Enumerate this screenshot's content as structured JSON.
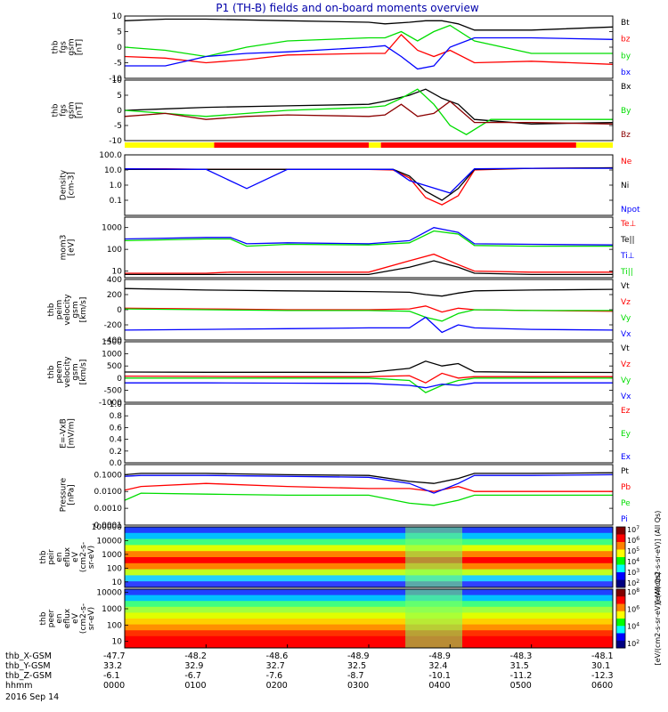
{
  "title": "P1 (TH-B) fields and on-board moments overview",
  "colors": {
    "black": "#000000",
    "red": "#ff0000",
    "green": "#00dd00",
    "blue": "#0000ff",
    "darkred": "#8b0000",
    "yellow": "#ffff00"
  },
  "chart_data": [
    {
      "type": "line",
      "ylabel": [
        "thb",
        "fgs",
        "gsm",
        "[nT]"
      ],
      "yticks": [
        "10",
        "5",
        "0",
        "-5",
        "-10"
      ],
      "ylim": [
        -10,
        10
      ],
      "series": [
        {
          "name": "Bt",
          "color": "black",
          "x": [
            0,
            0.5,
            1,
            2,
            3,
            3.2,
            3.5,
            3.7,
            3.9,
            4.1,
            4.3,
            5,
            6
          ],
          "y": [
            8.5,
            9,
            9,
            8.5,
            8,
            7.5,
            8,
            8.5,
            8.5,
            7.5,
            5.5,
            5.5,
            6.5
          ]
        },
        {
          "name": "bz",
          "color": "red",
          "x": [
            0,
            0.5,
            1,
            1.5,
            2,
            3,
            3.2,
            3.4,
            3.6,
            3.8,
            4,
            4.3,
            5,
            6
          ],
          "y": [
            -3,
            -3.5,
            -5,
            -4,
            -2.5,
            -2,
            -2,
            4,
            -1,
            -3,
            -1,
            -5,
            -4.5,
            -5.5
          ]
        },
        {
          "name": "by",
          "color": "green",
          "x": [
            0,
            0.5,
            1,
            1.5,
            2,
            3,
            3.2,
            3.4,
            3.6,
            3.8,
            4,
            4.3,
            5,
            6
          ],
          "y": [
            0,
            -1,
            -3,
            0,
            2,
            3,
            3,
            5,
            2,
            5,
            7,
            2,
            -2,
            -2
          ]
        },
        {
          "name": "bx",
          "color": "blue",
          "x": [
            0,
            0.5,
            1,
            1.5,
            2,
            3,
            3.2,
            3.4,
            3.6,
            3.8,
            4,
            4.3,
            5,
            6
          ],
          "y": [
            -6,
            -6,
            -3,
            -2,
            -1.5,
            0,
            0.5,
            -3,
            -7,
            -6,
            0,
            3,
            3,
            2.5
          ]
        }
      ]
    },
    {
      "type": "line",
      "ylabel": [
        "thb",
        "fgs",
        "gsm",
        "[nT]"
      ],
      "yticks": [
        "10",
        "5",
        "0",
        "-5",
        "-10"
      ],
      "ylim": [
        -10,
        10
      ],
      "series": [
        {
          "name": "Bx",
          "color": "black",
          "x": [
            0,
            0.5,
            1,
            2,
            3,
            3.2,
            3.5,
            3.7,
            3.9,
            4.1,
            4.3,
            5,
            6
          ],
          "y": [
            0,
            0.5,
            1,
            1.5,
            2,
            3,
            5,
            7,
            4,
            2,
            -3,
            -4.5,
            -4
          ]
        },
        {
          "name": "By",
          "color": "green",
          "x": [
            0,
            0.5,
            1,
            2,
            3,
            3.2,
            3.4,
            3.6,
            3.8,
            4,
            4.2,
            4.5,
            5,
            6
          ],
          "y": [
            0,
            -1,
            -2,
            0,
            1,
            1.5,
            4,
            7,
            2,
            -5,
            -8,
            -3,
            -3,
            -3
          ]
        },
        {
          "name": "Bz",
          "color": "darkred",
          "x": [
            0,
            0.5,
            1,
            1.5,
            2,
            3,
            3.2,
            3.4,
            3.6,
            3.8,
            4,
            4.3,
            5,
            6
          ],
          "y": [
            -2,
            -1,
            -3,
            -2,
            -1.5,
            -2,
            -1.5,
            2,
            -2,
            -1,
            3,
            -4,
            -4,
            -4.5
          ]
        }
      ]
    },
    {
      "type": "line",
      "scale": "log",
      "ylabel": [
        "Density",
        "[cm-3]"
      ],
      "yticks": [
        "100.0",
        "10.0",
        "1.0",
        "0.1"
      ],
      "ylim": [
        0.01,
        100
      ],
      "series": [
        {
          "name": "Ne",
          "color": "red",
          "x": [
            0,
            0.5,
            1,
            2,
            3,
            3.3,
            3.5,
            3.7,
            3.9,
            4.1,
            4.3,
            5,
            6
          ],
          "y": [
            12,
            12,
            11,
            11,
            11,
            10,
            3,
            0.15,
            0.05,
            0.2,
            10,
            13,
            14
          ]
        },
        {
          "name": "Ni",
          "color": "black",
          "x": [
            0,
            1,
            2,
            3,
            3.3,
            3.5,
            3.7,
            3.9,
            4.1,
            4.3,
            5,
            6
          ],
          "y": [
            11,
            11,
            11,
            11,
            11,
            4,
            0.4,
            0.1,
            0.6,
            11,
            13,
            14
          ]
        },
        {
          "name": "Npot",
          "color": "blue",
          "x": [
            0,
            1,
            1.5,
            2,
            3,
            3.3,
            3.5,
            4,
            4.3,
            5,
            6
          ],
          "y": [
            12,
            11,
            0.6,
            11,
            11,
            11,
            2,
            0.3,
            12,
            13,
            13
          ]
        }
      ]
    },
    {
      "type": "line",
      "scale": "log",
      "ylabel": [
        "mom3",
        "[eV]"
      ],
      "yticks": [
        "1000",
        "100",
        "10"
      ],
      "ylim": [
        5,
        3000
      ],
      "series": [
        {
          "name": "Te⊥",
          "color": "red",
          "x": [
            0,
            1,
            1.3,
            1.5,
            2,
            3,
            3.5,
            3.8,
            4.1,
            4.3,
            5,
            6
          ],
          "y": [
            8,
            8,
            9,
            9,
            9,
            9,
            30,
            60,
            20,
            10,
            9,
            9
          ]
        },
        {
          "name": "Te||",
          "color": "black",
          "x": [
            0,
            1,
            1.5,
            2,
            3,
            3.5,
            3.8,
            4.1,
            4.3,
            5,
            6
          ],
          "y": [
            7,
            7,
            7,
            7,
            7,
            15,
            30,
            15,
            8,
            7,
            7
          ]
        },
        {
          "name": "Ti⊥",
          "color": "blue",
          "x": [
            0,
            1,
            1.3,
            1.5,
            2,
            3,
            3.5,
            3.8,
            4.1,
            4.3,
            5,
            6
          ],
          "y": [
            300,
            350,
            350,
            180,
            200,
            180,
            250,
            1000,
            600,
            180,
            170,
            160
          ]
        },
        {
          "name": "Ti||",
          "color": "green",
          "x": [
            0,
            1,
            1.3,
            1.5,
            2,
            3,
            3.5,
            3.8,
            4.1,
            4.3,
            5,
            6
          ],
          "y": [
            250,
            300,
            300,
            140,
            170,
            160,
            200,
            700,
            500,
            150,
            140,
            140
          ]
        }
      ]
    },
    {
      "type": "line",
      "ylabel": [
        "thb",
        "peim",
        "velocity",
        "gsm",
        "[km/s]"
      ],
      "yticks": [
        "400",
        "200",
        "0",
        "-200",
        "-400"
      ],
      "ylim": [
        -400,
        400
      ],
      "series": [
        {
          "name": "Vt",
          "color": "black",
          "x": [
            0,
            1,
            2,
            3,
            3.5,
            3.7,
            3.9,
            4.1,
            4.3,
            5,
            6
          ],
          "y": [
            280,
            260,
            250,
            240,
            230,
            200,
            180,
            220,
            250,
            260,
            270
          ]
        },
        {
          "name": "Vz",
          "color": "red",
          "x": [
            0,
            1,
            2,
            3,
            3.5,
            3.7,
            3.9,
            4.1,
            4.3,
            5,
            6
          ],
          "y": [
            20,
            10,
            0,
            0,
            10,
            50,
            -30,
            20,
            0,
            -10,
            -20
          ]
        },
        {
          "name": "Vy",
          "color": "green",
          "x": [
            0,
            1,
            2,
            3,
            3.5,
            3.7,
            3.9,
            4.1,
            4.3,
            5,
            6
          ],
          "y": [
            10,
            0,
            -10,
            -10,
            -20,
            -100,
            -150,
            -50,
            0,
            -10,
            -10
          ]
        },
        {
          "name": "Vx",
          "color": "blue",
          "x": [
            0,
            1,
            2,
            3,
            3.5,
            3.7,
            3.9,
            4.1,
            4.3,
            5,
            6
          ],
          "y": [
            -270,
            -260,
            -250,
            -240,
            -240,
            -100,
            -300,
            -200,
            -240,
            -260,
            -270
          ]
        }
      ]
    },
    {
      "type": "line",
      "ylabel": [
        "thb",
        "peem",
        "velocity",
        "gsm",
        "[km/s]"
      ],
      "yticks": [
        "1500",
        "1000",
        "500",
        "0",
        "-500",
        "-1000"
      ],
      "ylim": [
        -1000,
        1500
      ],
      "series": [
        {
          "name": "Vt",
          "color": "black",
          "x": [
            0,
            1,
            2,
            3,
            3.5,
            3.7,
            3.9,
            4.1,
            4.3,
            5,
            6
          ],
          "y": [
            250,
            240,
            240,
            230,
            400,
            700,
            500,
            600,
            260,
            240,
            230
          ]
        },
        {
          "name": "Vz",
          "color": "red",
          "x": [
            0,
            1,
            2,
            3,
            3.5,
            3.7,
            3.9,
            4.1,
            4.3,
            5,
            6
          ],
          "y": [
            80,
            70,
            60,
            60,
            100,
            -200,
            200,
            0,
            60,
            60,
            60
          ]
        },
        {
          "name": "Vy",
          "color": "green",
          "x": [
            0,
            1,
            2,
            3,
            3.5,
            3.7,
            3.9,
            4.1,
            4.3,
            5,
            6
          ],
          "y": [
            0,
            0,
            0,
            0,
            -100,
            -600,
            -300,
            -100,
            0,
            0,
            0
          ]
        },
        {
          "name": "Vx",
          "color": "blue",
          "x": [
            0,
            1,
            2,
            3,
            3.5,
            3.7,
            3.9,
            4.1,
            4.3,
            5,
            6
          ],
          "y": [
            -200,
            -200,
            -210,
            -220,
            -300,
            -400,
            -250,
            -300,
            -200,
            -200,
            -200
          ]
        }
      ]
    },
    {
      "type": "line",
      "ylabel": [
        "E=-VxB",
        "[mV/m]"
      ],
      "yticks": [
        "1.0",
        "0.8",
        "0.6",
        "0.4",
        "0.2",
        "0.0"
      ],
      "ylim": [
        0,
        1
      ],
      "series": [
        {
          "name": "Ez",
          "color": "red",
          "x": [],
          "y": []
        },
        {
          "name": "Ey",
          "color": "green",
          "x": [],
          "y": []
        },
        {
          "name": "Ex",
          "color": "blue",
          "x": [],
          "y": []
        }
      ]
    },
    {
      "type": "line",
      "scale": "log",
      "ylabel": [
        "Pressure",
        "[nPa]"
      ],
      "yticks": [
        "0.1000",
        "0.0100",
        "0.0010",
        "0.0001"
      ],
      "ylim": [
        0.0001,
        0.4
      ],
      "series": [
        {
          "name": "Pt",
          "color": "black",
          "x": [
            0,
            0.2,
            1,
            2,
            3,
            3.5,
            3.8,
            4.1,
            4.3,
            5,
            6
          ],
          "y": [
            0.1,
            0.12,
            0.12,
            0.1,
            0.09,
            0.04,
            0.03,
            0.06,
            0.12,
            0.12,
            0.13
          ]
        },
        {
          "name": "Pb",
          "color": "red",
          "x": [
            0,
            0.2,
            1,
            2,
            3,
            3.5,
            3.8,
            4.1,
            4.3,
            5,
            6
          ],
          "y": [
            0.012,
            0.02,
            0.03,
            0.02,
            0.015,
            0.015,
            0.01,
            0.02,
            0.01,
            0.01,
            0.01
          ]
        },
        {
          "name": "Pe",
          "color": "green",
          "x": [
            0,
            0.2,
            1,
            2,
            3,
            3.5,
            3.8,
            4.1,
            4.3,
            5,
            6
          ],
          "y": [
            0.003,
            0.008,
            0.007,
            0.006,
            0.006,
            0.002,
            0.0015,
            0.003,
            0.006,
            0.006,
            0.006
          ]
        },
        {
          "name": "Pi",
          "color": "blue",
          "x": [
            0,
            0.2,
            1,
            2,
            3,
            3.5,
            3.8,
            4.1,
            4.3,
            5,
            6
          ],
          "y": [
            0.08,
            0.09,
            0.09,
            0.08,
            0.07,
            0.03,
            0.008,
            0.03,
            0.09,
            0.09,
            0.1
          ]
        }
      ]
    },
    {
      "type": "heatmap",
      "ylabel": [
        "thb",
        "peir",
        "en",
        "eflux",
        "eV",
        "(cm2-s-",
        "sr-eV)"
      ],
      "yticks": [
        "100000",
        "10000",
        "1000",
        "100",
        "10"
      ],
      "colorbar_label": "[eV/(cm2-s-sr-eV)] (All Qs)",
      "colorbar_ticks": [
        "10^7",
        "10^6",
        "10^5",
        "10^4",
        "10^3",
        "10^2"
      ]
    },
    {
      "type": "heatmap",
      "ylabel": [
        "thb",
        "peer",
        "en",
        "eflux",
        "eV",
        "(cm2-s-",
        "sr-eV)"
      ],
      "yticks": [
        "10000",
        "1000",
        "100",
        "10"
      ],
      "colorbar_label": "[eV/(cm2-s-sr-eV)] (All Qs)",
      "colorbar_ticks": [
        "10^8",
        "10^6",
        "10^4",
        "10^2"
      ]
    }
  ],
  "footer": {
    "row_labels": [
      "thb_X-GSM",
      "thb_Y-GSM",
      "thb_Z-GSM",
      "hhmm",
      "2016 Sep 14"
    ],
    "columns": [
      {
        "x": "-47.7",
        "y": "33.2",
        "z": "-6.1",
        "t": "0000"
      },
      {
        "x": "-48.2",
        "y": "32.9",
        "z": "-6.7",
        "t": "0100"
      },
      {
        "x": "-48.6",
        "y": "32.7",
        "z": "-7.6",
        "t": "0200"
      },
      {
        "x": "-48.9",
        "y": "32.5",
        "z": "-8.7",
        "t": "0300"
      },
      {
        "x": "-48.9",
        "y": "32.4",
        "z": "-10.1",
        "t": "0400"
      },
      {
        "x": "-48.3",
        "y": "31.5",
        "z": "-11.2",
        "t": "0500"
      },
      {
        "x": "-48.1",
        "y": "30.1",
        "z": "-12.3",
        "t": "0600"
      }
    ]
  }
}
